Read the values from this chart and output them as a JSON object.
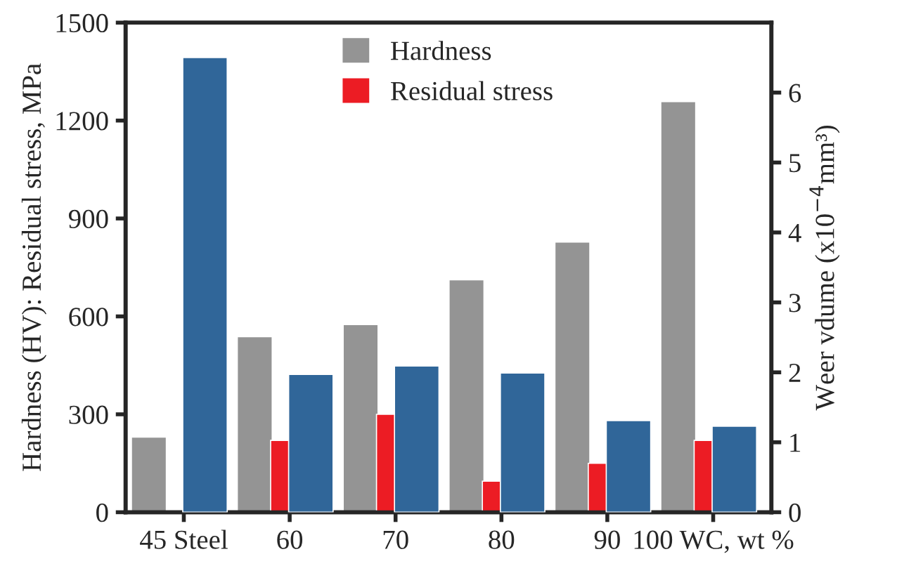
{
  "chart_data": {
    "type": "bar",
    "categories": [
      "45 Steel",
      "60",
      "70",
      "80",
      "90",
      "100 WC, wt %"
    ],
    "series": [
      {
        "name": "Hardness",
        "color": "#949494",
        "values": [
          230,
          538,
          575,
          712,
          828,
          1258
        ]
      },
      {
        "name": "Residual stress",
        "color": "#ec1c24",
        "values": [
          null,
          220,
          300,
          95,
          150,
          220
        ]
      },
      {
        "color": "#306699",
        "axis": "y2",
        "values": [
          6.5,
          1.97,
          2.09,
          1.99,
          1.31,
          1.23
        ]
      }
    ],
    "ylabel": "Hardness (HV): Residual stress, MPa",
    "y2label": "Weer vdume (x10$^{−4}$mm³)",
    "ylim": [
      0,
      1500
    ],
    "yticks": [
      0,
      300,
      600,
      900,
      1200,
      1500
    ],
    "y2lim": [
      0,
      7
    ],
    "y2ticks": [
      0,
      1,
      2,
      3,
      4,
      5,
      6
    ],
    "legend": "top",
    "grid": false
  }
}
